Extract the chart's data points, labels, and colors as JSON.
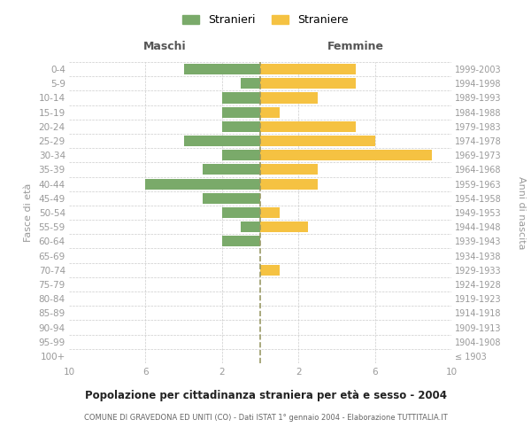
{
  "age_groups": [
    "100+",
    "95-99",
    "90-94",
    "85-89",
    "80-84",
    "75-79",
    "70-74",
    "65-69",
    "60-64",
    "55-59",
    "50-54",
    "45-49",
    "40-44",
    "35-39",
    "30-34",
    "25-29",
    "20-24",
    "15-19",
    "10-14",
    "5-9",
    "0-4"
  ],
  "birth_years": [
    "≤ 1903",
    "1904-1908",
    "1909-1913",
    "1914-1918",
    "1919-1923",
    "1924-1928",
    "1929-1933",
    "1934-1938",
    "1939-1943",
    "1944-1948",
    "1949-1953",
    "1954-1958",
    "1959-1963",
    "1964-1968",
    "1969-1973",
    "1974-1978",
    "1979-1983",
    "1984-1988",
    "1989-1993",
    "1994-1998",
    "1999-2003"
  ],
  "males": [
    0,
    0,
    0,
    0,
    0,
    0,
    0,
    0,
    2,
    1,
    2,
    3,
    6,
    3,
    2,
    4,
    2,
    2,
    2,
    1,
    4
  ],
  "females": [
    0,
    0,
    0,
    0,
    0,
    0,
    1,
    0,
    0,
    2.5,
    1,
    0,
    3,
    3,
    9,
    6,
    5,
    1,
    3,
    5,
    5
  ],
  "male_color": "#7aaa6a",
  "female_color": "#f5c242",
  "title": "Popolazione per cittadinanza straniera per età e sesso - 2004",
  "subtitle": "COMUNE DI GRAVEDONA ED UNITI (CO) - Dati ISTAT 1° gennaio 2004 - Elaborazione TUTTITALIA.IT",
  "xlabel_left": "Maschi",
  "xlabel_right": "Femmine",
  "ylabel_left": "Fasce di età",
  "ylabel_right": "Anni di nascita",
  "legend_male": "Stranieri",
  "legend_female": "Straniere",
  "xlim": 10,
  "background_color": "#ffffff",
  "grid_color": "#cccccc",
  "header_color": "#555555",
  "tick_color": "#999999"
}
